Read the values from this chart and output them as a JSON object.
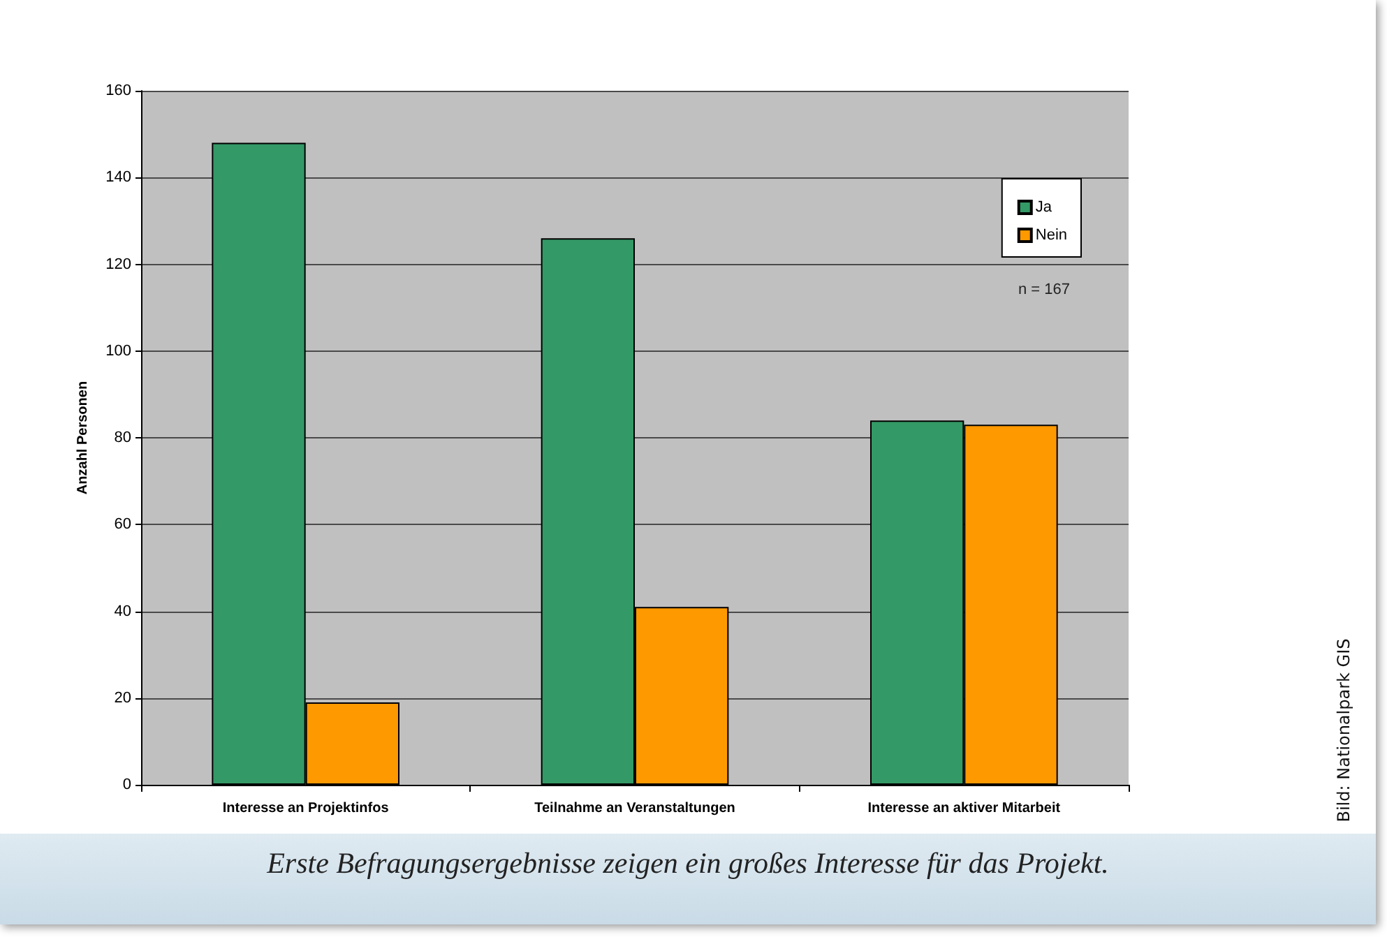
{
  "chart_data": {
    "type": "bar",
    "ylabel": "Anzahl Personen",
    "categories": [
      "Interesse an Projektinfos",
      "Teilnahme an Veranstaltungen",
      "Interesse an aktiver Mitarbeit"
    ],
    "series": [
      {
        "name": "Ja",
        "color": "#339966",
        "values": [
          148,
          126,
          84
        ]
      },
      {
        "name": "Nein",
        "color": "#ff9900",
        "values": [
          19,
          41,
          83
        ]
      }
    ],
    "ylim": [
      0,
      160
    ],
    "yticks": [
      0,
      20,
      40,
      60,
      80,
      100,
      120,
      140,
      160
    ],
    "grid": "y",
    "legend": "top right",
    "annotations": [
      "n = 167",
      "Erste Befragungsergebnisse zeigen ein großes Interesse für das Projekt.",
      "Bild: Nationalpark GIS"
    ]
  }
}
